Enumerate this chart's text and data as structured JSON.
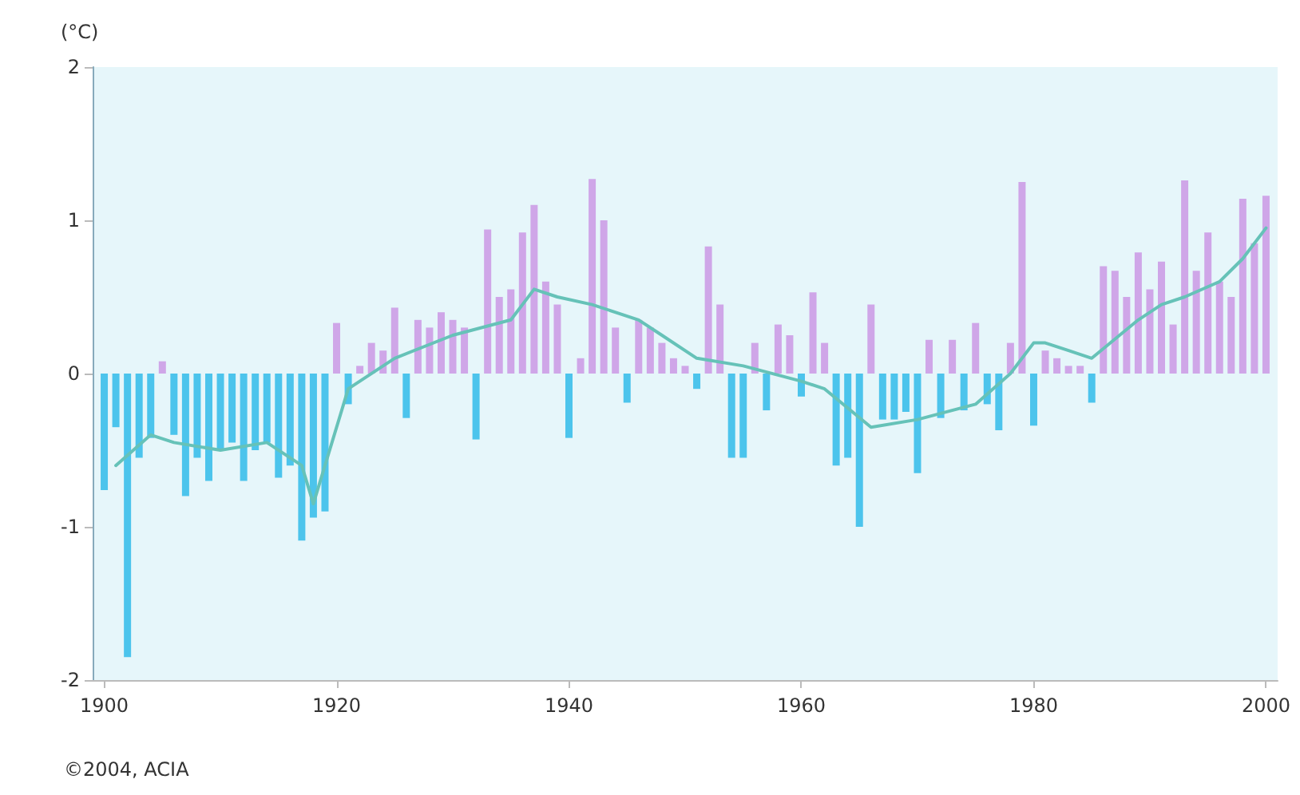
{
  "chart_data": {
    "type": "bar",
    "ylabel": "(°C)",
    "annotations": [
      "©2004, ACIA"
    ],
    "xlim": [
      1899,
      2001
    ],
    "xticks": [
      1900,
      1920,
      1940,
      1960,
      1980,
      2000
    ],
    "ylim": [
      -2,
      2
    ],
    "yticks": [
      -2,
      -1,
      0,
      1,
      2
    ],
    "grid": false,
    "series": [
      {
        "x": [
          1900,
          1901,
          1902,
          1903,
          1904,
          1905,
          1906,
          1907,
          1908,
          1909,
          1910,
          1911,
          1912,
          1913,
          1914,
          1915,
          1916,
          1917,
          1918,
          1919,
          1920,
          1921,
          1922,
          1923,
          1924,
          1925,
          1926,
          1927,
          1928,
          1929,
          1930,
          1931,
          1932,
          1933,
          1934,
          1935,
          1936,
          1937,
          1938,
          1939,
          1940,
          1941,
          1942,
          1943,
          1944,
          1945,
          1946,
          1947,
          1948,
          1949,
          1950,
          1951,
          1952,
          1953,
          1954,
          1955,
          1956,
          1957,
          1958,
          1959,
          1960,
          1961,
          1962,
          1963,
          1964,
          1965,
          1966,
          1967,
          1968,
          1969,
          1970,
          1971,
          1972,
          1973,
          1974,
          1975,
          1976,
          1977,
          1978,
          1979,
          1980,
          1981,
          1982,
          1983,
          1984,
          1985,
          1986,
          1987,
          1988,
          1989,
          1990,
          1991,
          1992,
          1993,
          1994,
          1995,
          1996,
          1997,
          1998,
          1999,
          2000
        ],
        "values": [
          -0.76,
          -0.35,
          -1.85,
          -0.55,
          -0.42,
          0.08,
          -0.4,
          -0.8,
          -0.55,
          -0.7,
          -0.5,
          -0.45,
          -0.7,
          -0.5,
          -0.45,
          -0.68,
          -0.6,
          -1.09,
          -0.94,
          -0.9,
          0.33,
          -0.2,
          0.05,
          0.2,
          0.15,
          0.43,
          -0.29,
          0.35,
          0.3,
          0.4,
          0.35,
          0.3,
          -0.43,
          0.94,
          0.5,
          0.55,
          0.92,
          1.1,
          0.6,
          0.45,
          -0.42,
          0.1,
          1.27,
          1.0,
          0.3,
          -0.19,
          0.35,
          0.3,
          0.2,
          0.1,
          0.05,
          -0.1,
          0.83,
          0.45,
          -0.55,
          -0.55,
          0.2,
          -0.24,
          0.32,
          0.25,
          -0.15,
          0.53,
          0.2,
          -0.6,
          -0.55,
          -1.0,
          0.45,
          -0.3,
          -0.3,
          -0.25,
          -0.65,
          0.22,
          -0.29,
          0.22,
          -0.24,
          0.33,
          -0.2,
          -0.37,
          0.2,
          1.25,
          -0.34,
          0.15,
          0.1,
          0.05,
          0.05,
          -0.19,
          0.7,
          0.67,
          0.5,
          0.79,
          0.55,
          0.73,
          0.32,
          1.26,
          0.67,
          0.92,
          0.6,
          0.5,
          1.14,
          0.85,
          1.16
        ],
        "colors": [
          "#4cc4ec",
          "#4cc4ec",
          "#4cc4ec",
          "#4cc4ec",
          "#4cc4ec",
          "#cfa6e8",
          "#4cc4ec",
          "#4cc4ec",
          "#4cc4ec",
          "#4cc4ec",
          "#4cc4ec",
          "#4cc4ec",
          "#4cc4ec",
          "#4cc4ec",
          "#4cc4ec",
          "#4cc4ec",
          "#4cc4ec",
          "#4cc4ec",
          "#4cc4ec",
          "#4cc4ec",
          "#cfa6e8",
          "#4cc4ec",
          "#cfa6e8",
          "#cfa6e8",
          "#cfa6e8",
          "#cfa6e8",
          "#4cc4ec",
          "#cfa6e8",
          "#cfa6e8",
          "#cfa6e8",
          "#cfa6e8",
          "#cfa6e8",
          "#4cc4ec",
          "#cfa6e8",
          "#cfa6e8",
          "#cfa6e8",
          "#cfa6e8",
          "#cfa6e8",
          "#cfa6e8",
          "#cfa6e8",
          "#4cc4ec",
          "#cfa6e8",
          "#cfa6e8",
          "#cfa6e8",
          "#cfa6e8",
          "#4cc4ec",
          "#cfa6e8",
          "#cfa6e8",
          "#cfa6e8",
          "#cfa6e8",
          "#cfa6e8",
          "#4cc4ec",
          "#cfa6e8",
          "#cfa6e8",
          "#4cc4ec",
          "#4cc4ec",
          "#cfa6e8",
          "#4cc4ec",
          "#cfa6e8",
          "#cfa6e8",
          "#4cc4ec",
          "#cfa6e8",
          "#cfa6e8",
          "#4cc4ec",
          "#4cc4ec",
          "#4cc4ec",
          "#cfa6e8",
          "#4cc4ec",
          "#4cc4ec",
          "#4cc4ec",
          "#4cc4ec",
          "#cfa6e8",
          "#4cc4ec",
          "#cfa6e8",
          "#4cc4ec",
          "#cfa6e8",
          "#4cc4ec",
          "#4cc4ec",
          "#cfa6e8",
          "#cfa6e8",
          "#4cc4ec",
          "#cfa6e8",
          "#cfa6e8",
          "#cfa6e8",
          "#cfa6e8",
          "#4cc4ec",
          "#cfa6e8",
          "#cfa6e8",
          "#cfa6e8",
          "#cfa6e8",
          "#cfa6e8",
          "#cfa6e8",
          "#cfa6e8",
          "#cfa6e8",
          "#cfa6e8",
          "#cfa6e8",
          "#cfa6e8",
          "#cfa6e8",
          "#cfa6e8",
          "#cfa6e8",
          "#cfa6e8"
        ]
      },
      {
        "type": "line",
        "color": "#66c2b8",
        "marker": "none",
        "line_style": "solid",
        "x": [
          1901,
          1904,
          1906,
          1910,
          1914,
          1917,
          1918,
          1921,
          1925,
          1930,
          1935,
          1937,
          1939,
          1942,
          1946,
          1948,
          1951,
          1955,
          1960,
          1962,
          1966,
          1970,
          1975,
          1978,
          1980,
          1981,
          1983,
          1985,
          1989,
          1991,
          1993,
          1996,
          1998,
          2000
        ],
        "values": [
          -0.6,
          -0.4,
          -0.45,
          -0.5,
          -0.45,
          -0.6,
          -0.85,
          -0.1,
          0.1,
          0.25,
          0.35,
          0.55,
          0.5,
          0.45,
          0.35,
          0.25,
          0.1,
          0.05,
          -0.05,
          -0.1,
          -0.35,
          -0.3,
          -0.2,
          0.0,
          0.2,
          0.2,
          0.15,
          0.1,
          0.35,
          0.45,
          0.5,
          0.6,
          0.75,
          0.95
        ]
      }
    ]
  }
}
